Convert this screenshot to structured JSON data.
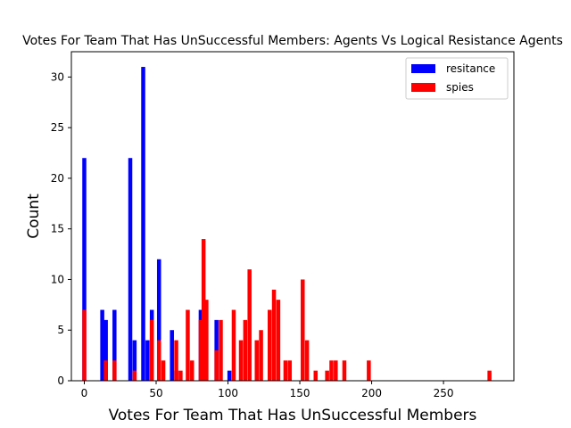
{
  "chart_data": {
    "type": "bar",
    "title": "Votes For Team That Has UnSuccessful Members: Agents Vs Logical Resistance Agents",
    "xlabel": "Votes For Team That Has UnSuccessful Members",
    "ylabel": "Count",
    "xlim": [
      -9,
      299
    ],
    "ylim": [
      0,
      32.5
    ],
    "xticks": [
      0,
      50,
      100,
      150,
      200,
      250
    ],
    "yticks": [
      0,
      5,
      10,
      15,
      20,
      25,
      30
    ],
    "legend": {
      "placement": "top-right"
    },
    "bin_width": 2.8,
    "series": [
      {
        "name": "resitance",
        "color": "#0000ff",
        "x": [
          0,
          12.5,
          15,
          21,
          32,
          35,
          41,
          44,
          47,
          52,
          61,
          64,
          81,
          92,
          101
        ],
        "values": [
          22,
          7,
          6,
          7,
          22,
          4,
          31,
          4,
          7,
          12,
          5,
          1,
          7,
          6,
          1
        ]
      },
      {
        "name": "spies",
        "color": "#ff0000",
        "x": [
          0,
          15,
          21,
          35,
          47,
          52,
          55,
          64,
          67,
          72,
          75,
          81,
          83,
          85,
          92,
          95,
          104,
          109,
          112,
          115,
          120,
          123,
          129,
          132,
          135,
          140,
          143,
          152,
          155,
          161,
          169,
          172,
          175,
          181,
          198,
          282
        ],
        "values": [
          7,
          2,
          2,
          1,
          6,
          4,
          2,
          4,
          1,
          7,
          2,
          6,
          14,
          8,
          3,
          6,
          7,
          4,
          6,
          11,
          4,
          5,
          7,
          9,
          8,
          2,
          2,
          10,
          4,
          1,
          1,
          2,
          2,
          2,
          2,
          1
        ]
      }
    ]
  }
}
